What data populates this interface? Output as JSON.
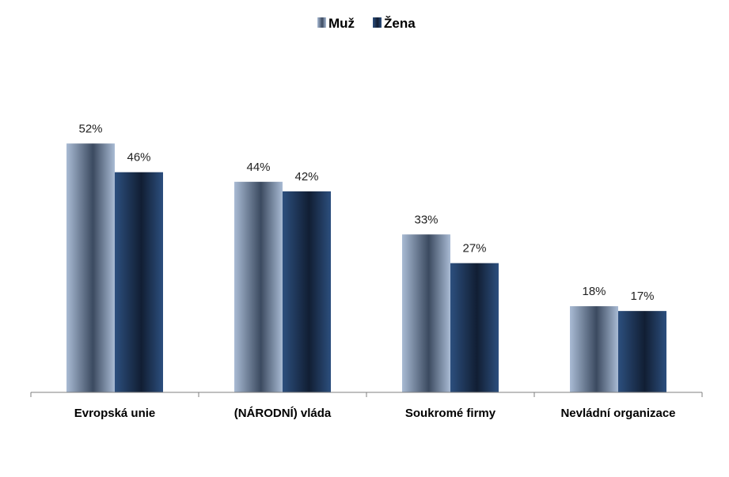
{
  "chart_data": {
    "type": "bar",
    "categories": [
      "Evropská unie",
      "(NÁRODNÍ) vláda",
      "Soukromé firmy",
      "Nevládní organizace"
    ],
    "series": [
      {
        "name": "Muž",
        "values": [
          52,
          44,
          33,
          18
        ],
        "labels": [
          "52%",
          "44%",
          "33%",
          "18%"
        ],
        "color": "#8fa3c0"
      },
      {
        "name": "Žena",
        "values": [
          46,
          42,
          27,
          17
        ],
        "labels": [
          "46%",
          "42%",
          "27%",
          "17%"
        ],
        "color": "#1f3a5f"
      }
    ],
    "ylim": [
      0,
      60
    ],
    "legend_position": "top-center",
    "grid": false
  }
}
